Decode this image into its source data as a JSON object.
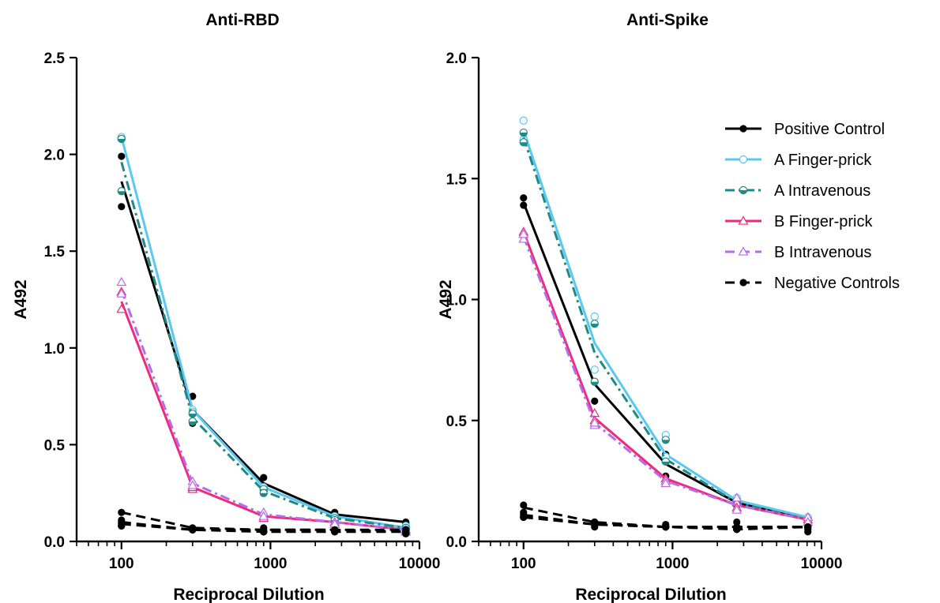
{
  "colors": {
    "Positive Control": "#000000",
    "A Finger-prick": "#5bc8f0",
    "A Intravenous": "#1e8a86",
    "B Finger-prick": "#ee2a7b",
    "B Intravenous": "#b86bea",
    "Negative Controls": "#000000"
  },
  "legend": [
    {
      "label": "Positive Control",
      "icon": "filled-circle",
      "dash": "solid"
    },
    {
      "label": "A Finger-prick",
      "icon": "open-circle",
      "dash": "solid"
    },
    {
      "label": "A Intravenous",
      "icon": "half-circle",
      "dash": "dashdot"
    },
    {
      "label": "B Finger-prick",
      "icon": "open-triangle",
      "dash": "solid"
    },
    {
      "label": "B Intravenous",
      "icon": "open-triangle",
      "dash": "dashed"
    },
    {
      "label": "Negative Controls",
      "icon": "filled-circle",
      "dash": "dashed"
    }
  ],
  "chart_data": [
    {
      "type": "line",
      "title": "Anti-RBD",
      "xlabel": "Reciprocal Dilution",
      "ylabel": "A492",
      "xscale": "log",
      "xlim": [
        50,
        10000
      ],
      "ylim": [
        0,
        2.5
      ],
      "xticks": [
        100,
        1000,
        10000
      ],
      "yticks": [
        0.0,
        0.5,
        1.0,
        1.5,
        2.0,
        2.5
      ],
      "x": [
        100,
        300,
        900,
        2700,
        8100
      ],
      "series": [
        {
          "name": "Positive Control",
          "values": [
            1.86,
            0.68,
            0.3,
            0.14,
            0.1
          ],
          "points": [
            [
              1.99,
              1.73
            ],
            [
              0.75,
              0.61
            ],
            [
              0.33,
              0.27
            ],
            [
              0.15,
              0.13
            ],
            [
              0.1,
              0.09
            ]
          ]
        },
        {
          "name": "A Finger-prick",
          "values": [
            2.09,
            0.68,
            0.28,
            0.13,
            0.07
          ],
          "points": [
            [
              2.09,
              2.08
            ],
            [
              0.68,
              0.67
            ],
            [
              0.28,
              0.26
            ],
            [
              0.13,
              0.12
            ],
            [
              0.08,
              0.07
            ]
          ]
        },
        {
          "name": "A Intravenous",
          "values": [
            1.96,
            0.64,
            0.26,
            0.12,
            0.07
          ],
          "points": [
            [
              1.81,
              2.08
            ],
            [
              0.66,
              0.62
            ],
            [
              0.27,
              0.25
            ],
            [
              0.12,
              0.11
            ],
            [
              0.07,
              0.06
            ]
          ]
        },
        {
          "name": "B Finger-prick",
          "values": [
            1.24,
            0.28,
            0.13,
            0.1,
            0.06
          ],
          "points": [
            [
              1.2,
              1.29
            ],
            [
              0.27,
              0.28
            ],
            [
              0.13,
              0.12
            ],
            [
              0.1,
              0.09
            ],
            [
              0.06,
              0.05
            ]
          ]
        },
        {
          "name": "B Intravenous",
          "values": [
            1.3,
            0.3,
            0.14,
            0.1,
            0.06
          ],
          "points": [
            [
              1.34,
              1.28
            ],
            [
              0.31,
              0.29
            ],
            [
              0.15,
              0.13
            ],
            [
              0.1,
              0.09
            ],
            [
              0.06,
              0.05
            ]
          ]
        },
        {
          "name": "Negative Controls",
          "values": [
            0.15,
            0.07,
            0.06,
            0.06,
            0.06
          ],
          "points": [
            [
              0.15,
              0.1
            ],
            [
              0.07,
              0.06
            ],
            [
              0.07,
              0.05
            ],
            [
              0.06,
              0.06
            ],
            [
              0.06,
              0.05
            ]
          ]
        },
        {
          "name": "Negative Controls",
          "values": [
            0.1,
            0.06,
            0.06,
            0.06,
            0.05
          ],
          "points": [
            [
              0.08,
              0.11
            ],
            [
              0.06,
              0.06
            ],
            [
              0.05,
              0.06
            ],
            [
              0.06,
              0.05
            ],
            [
              0.05,
              0.04
            ]
          ]
        },
        {
          "name": "Negative Controls",
          "values": [
            0.09,
            0.06,
            0.05,
            0.05,
            0.05
          ],
          "points": [
            [
              0.09,
              0.08
            ],
            [
              0.06,
              0.06
            ],
            [
              0.05,
              0.05
            ],
            [
              0.05,
              0.05
            ],
            [
              0.05,
              0.04
            ]
          ]
        }
      ]
    },
    {
      "type": "line",
      "title": "Anti-Spike",
      "xlabel": "Reciprocal Dilution",
      "ylabel": "A492",
      "xscale": "log",
      "xlim": [
        50,
        10000
      ],
      "ylim": [
        0,
        2.0
      ],
      "xticks": [
        100,
        1000,
        10000
      ],
      "yticks": [
        0.0,
        0.5,
        1.0,
        1.5,
        2.0
      ],
      "x": [
        100,
        300,
        900,
        2700,
        8100
      ],
      "series": [
        {
          "name": "Positive Control",
          "values": [
            1.4,
            0.65,
            0.32,
            0.16,
            0.09
          ],
          "points": [
            [
              1.42,
              1.39
            ],
            [
              0.71,
              0.58
            ],
            [
              0.36,
              0.27
            ],
            [
              0.17,
              0.15
            ],
            [
              0.1,
              0.08
            ]
          ]
        },
        {
          "name": "A Finger-prick",
          "values": [
            1.7,
            0.82,
            0.36,
            0.17,
            0.1
          ],
          "points": [
            [
              1.74,
              1.66
            ],
            [
              0.93,
              0.71
            ],
            [
              0.44,
              0.35
            ],
            [
              0.18,
              0.16
            ],
            [
              0.1,
              0.09
            ]
          ]
        },
        {
          "name": "A Intravenous",
          "values": [
            1.67,
            0.78,
            0.34,
            0.16,
            0.09
          ],
          "points": [
            [
              1.69,
              1.65
            ],
            [
              0.9,
              0.66
            ],
            [
              0.42,
              0.33
            ],
            [
              0.17,
              0.15
            ],
            [
              0.09,
              0.09
            ]
          ]
        },
        {
          "name": "B Finger-prick",
          "values": [
            1.28,
            0.51,
            0.26,
            0.15,
            0.09
          ],
          "points": [
            [
              1.28,
              1.27
            ],
            [
              0.53,
              0.5
            ],
            [
              0.26,
              0.25
            ],
            [
              0.16,
              0.14
            ],
            [
              0.1,
              0.09
            ]
          ]
        },
        {
          "name": "B Intravenous",
          "values": [
            1.26,
            0.49,
            0.25,
            0.15,
            0.09
          ],
          "points": [
            [
              1.25,
              1.27
            ],
            [
              0.48,
              0.49
            ],
            [
              0.25,
              0.24
            ],
            [
              0.18,
              0.13
            ],
            [
              0.1,
              0.08
            ]
          ]
        },
        {
          "name": "Negative Controls",
          "values": [
            0.14,
            0.08,
            0.06,
            0.06,
            0.06
          ],
          "points": [
            [
              0.15,
              0.12
            ],
            [
              0.08,
              0.08
            ],
            [
              0.07,
              0.06
            ],
            [
              0.08,
              0.05
            ],
            [
              0.06,
              0.06
            ]
          ]
        },
        {
          "name": "Negative Controls",
          "values": [
            0.11,
            0.07,
            0.06,
            0.06,
            0.06
          ],
          "points": [
            [
              0.11,
              0.1
            ],
            [
              0.07,
              0.07
            ],
            [
              0.06,
              0.06
            ],
            [
              0.06,
              0.05
            ],
            [
              0.06,
              0.05
            ]
          ]
        },
        {
          "name": "Negative Controls",
          "values": [
            0.1,
            0.07,
            0.06,
            0.05,
            0.06
          ],
          "points": [
            [
              0.1,
              0.1
            ],
            [
              0.06,
              0.07
            ],
            [
              0.06,
              0.06
            ],
            [
              0.05,
              0.05
            ],
            [
              0.06,
              0.04
            ]
          ]
        }
      ]
    }
  ]
}
